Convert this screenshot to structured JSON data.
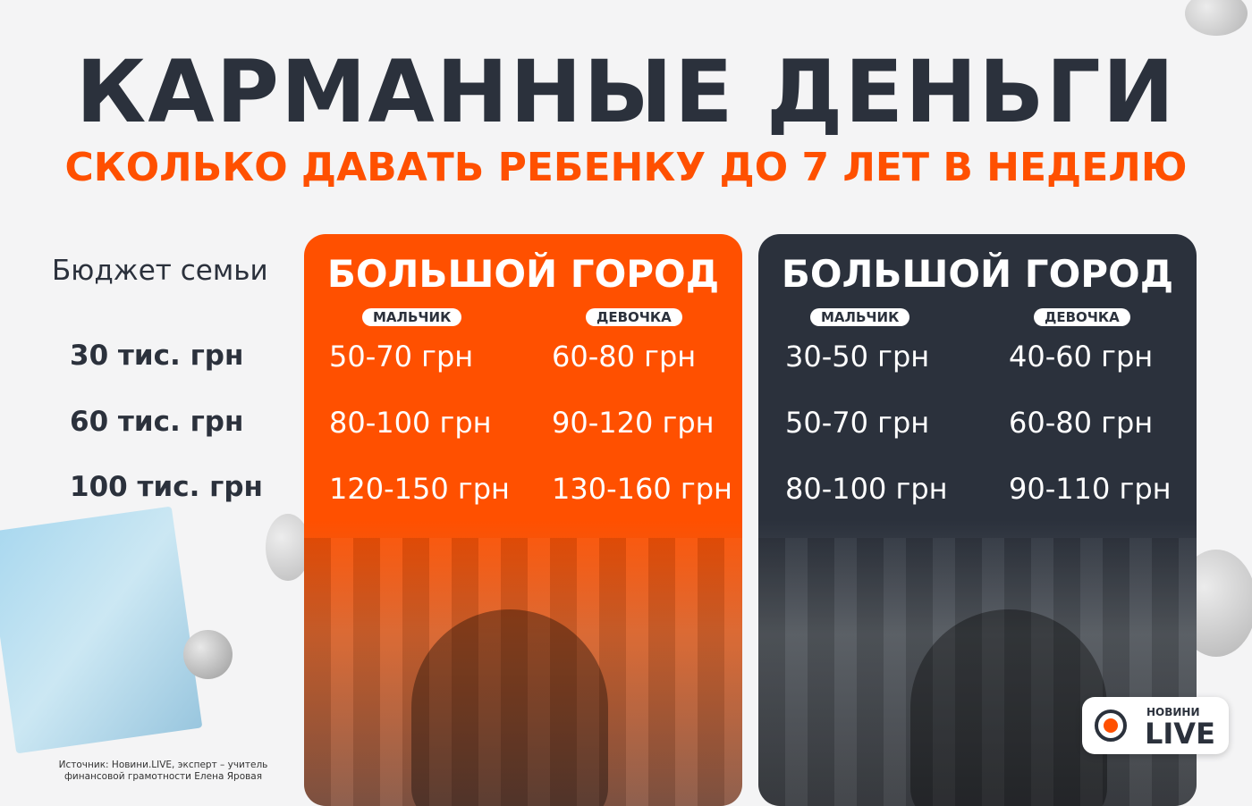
{
  "title": "КАРМАННЫЕ ДЕНЬГИ",
  "subtitle": "СКОЛЬКО ДАВАТЬ РЕБЕНКУ ДО 7 ЛЕТ В НЕДЕЛЮ",
  "budget_header": "Бюджет семьи",
  "budgets": [
    "30 тис. грн",
    "60 тис. грн",
    "100 тис. грн"
  ],
  "panels": [
    {
      "title": "БОЛЬШОЙ ГОРОД",
      "boy_label": "МАЛЬЧИК",
      "girl_label": "ДЕВОЧКА",
      "color": "#ff5000",
      "boy": [
        "50-70 грн",
        "80-100 грн",
        "120-150 грн"
      ],
      "girl": [
        "60-80 грн",
        "90-120 грн",
        "130-160 грн"
      ]
    },
    {
      "title": "БОЛЬШОЙ ГОРОД",
      "boy_label": "МАЛЬЧИК",
      "girl_label": "ДЕВОЧКА",
      "color": "#2b313c",
      "boy": [
        "30-50 грн",
        "50-70 грн",
        "80-100 грн"
      ],
      "girl": [
        "40-60 грн",
        "60-80 грн",
        "90-110 грн"
      ]
    }
  ],
  "source": "Источник: Новини.LIVE, эксперт – учитель финансовой грамотности Елена Яровая",
  "logo": {
    "small": "НОВИНИ",
    "big": "LIVE"
  }
}
